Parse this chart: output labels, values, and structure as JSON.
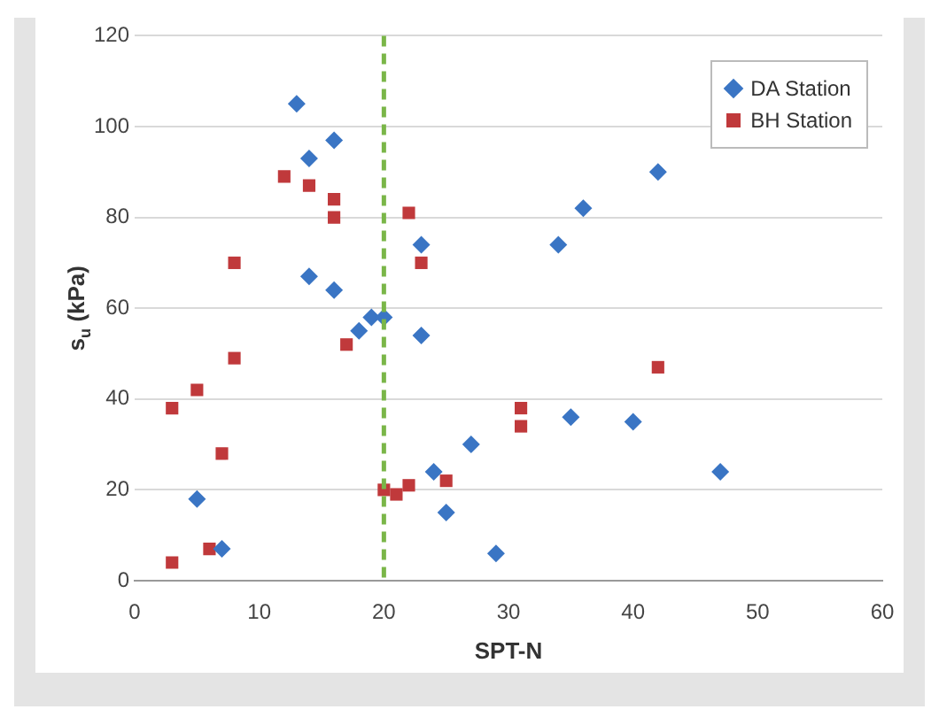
{
  "chart_data": {
    "type": "scatter",
    "xlabel": "SPT-N",
    "ylabel": "s$_{u}$ (kPa)",
    "xlim": [
      0,
      60
    ],
    "xticks": [
      0,
      10,
      20,
      30,
      40,
      50,
      60
    ],
    "ylim": [
      0,
      120
    ],
    "yticks": [
      0,
      20,
      40,
      60,
      80,
      100,
      120
    ],
    "grid": "y",
    "legend": "top right",
    "series": [
      {
        "name": "DA Station",
        "color": "#3a75c4",
        "marker": "diamond",
        "x": [
          13,
          14,
          16,
          14,
          16,
          18,
          19,
          20,
          23,
          23,
          34,
          36,
          42,
          24,
          25,
          27,
          29,
          35,
          40,
          47,
          5,
          7
        ],
        "values": [
          105,
          93,
          97,
          67,
          64,
          55,
          58,
          58,
          74,
          54,
          74,
          82,
          90,
          24,
          15,
          30,
          6,
          36,
          35,
          24,
          18,
          7
        ]
      },
      {
        "name": "BH Station",
        "color": "#c0393b",
        "marker": "square",
        "x": [
          3,
          5,
          7,
          8,
          8,
          3,
          6,
          12,
          14,
          16,
          16,
          17,
          22,
          23,
          20,
          21,
          22,
          25,
          31,
          31,
          42
        ],
        "values": [
          38,
          42,
          28,
          49,
          70,
          4,
          7,
          89,
          87,
          84,
          80,
          52,
          81,
          70,
          20,
          19,
          21,
          22,
          38,
          34,
          47
        ]
      }
    ],
    "ref_lines": [
      {
        "axis": "x",
        "value": 20,
        "color": "#7ab648",
        "line_style": "dashed"
      }
    ]
  }
}
